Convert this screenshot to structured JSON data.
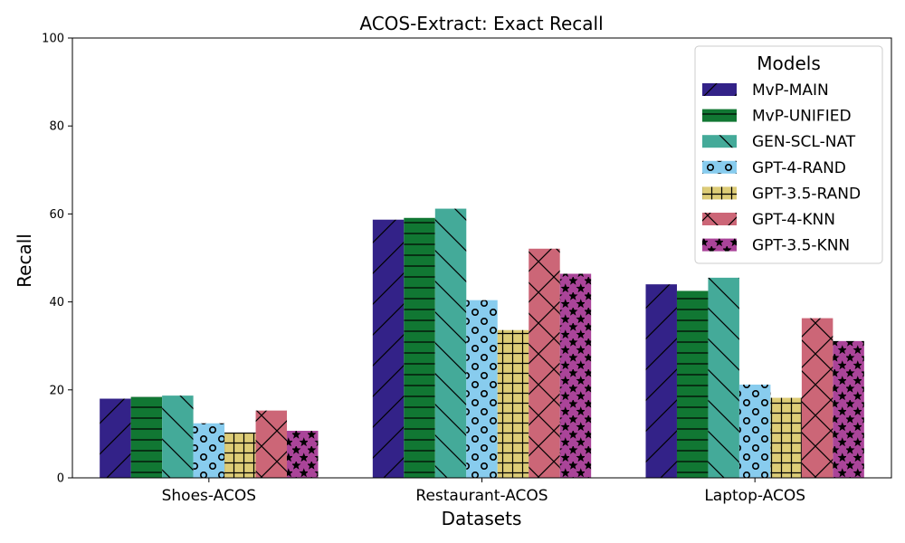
{
  "chart_data": {
    "type": "bar",
    "title": "ACOS-Extract: Exact Recall",
    "xlabel": "Datasets",
    "ylabel": "Recall",
    "ylim": [
      0,
      100
    ],
    "yticks": [
      0,
      20,
      40,
      60,
      80,
      100
    ],
    "grid": false,
    "categories": [
      "Shoes-ACOS",
      "Restaurant-ACOS",
      "Laptop-ACOS"
    ],
    "legend": {
      "title": "Models",
      "placement": "top-right"
    },
    "series": [
      {
        "name": "MvP-MAIN",
        "values": [
          18.0,
          58.7,
          44.0
        ],
        "color": "#332288",
        "hatch": "diag-forward"
      },
      {
        "name": "MvP-UNIFIED",
        "values": [
          18.4,
          59.1,
          42.5
        ],
        "color": "#117733",
        "hatch": "horizontal"
      },
      {
        "name": "GEN-SCL-NAT",
        "values": [
          18.7,
          61.2,
          45.5
        ],
        "color": "#44AA99",
        "hatch": "diag-back"
      },
      {
        "name": "GPT-4-RAND",
        "values": [
          12.4,
          40.4,
          21.2
        ],
        "color": "#88CCEE",
        "hatch": "circles"
      },
      {
        "name": "GPT-3.5-RAND",
        "values": [
          10.3,
          33.6,
          18.2
        ],
        "color": "#DDCC77",
        "hatch": "grid"
      },
      {
        "name": "GPT-4-KNN",
        "values": [
          15.3,
          52.1,
          36.3
        ],
        "color": "#CC6677",
        "hatch": "cross"
      },
      {
        "name": "GPT-3.5-KNN",
        "values": [
          10.7,
          46.4,
          31.1
        ],
        "color": "#AA4499",
        "hatch": "stars"
      }
    ]
  }
}
